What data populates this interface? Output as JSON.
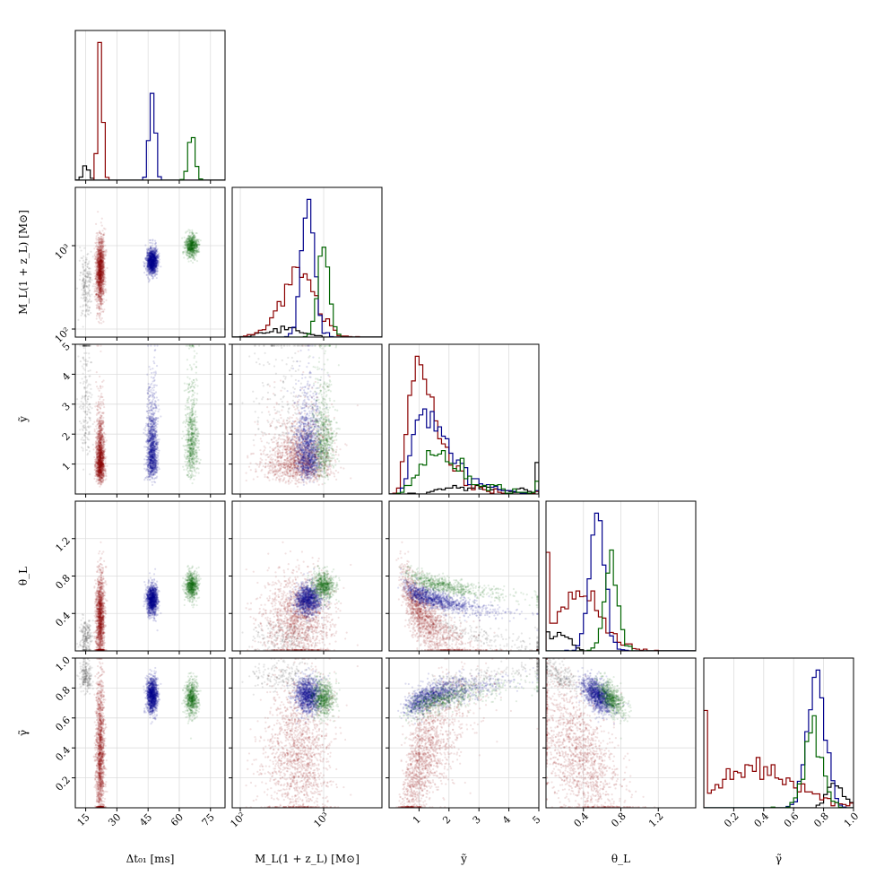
{
  "chart_data": {
    "type": "corner",
    "parameters": [
      {
        "key": "dt",
        "label": "Δt₀₁ [ms]",
        "range": [
          10,
          82
        ],
        "scale": "linear",
        "ticks": [
          15,
          30,
          45,
          60,
          75
        ],
        "tick_labels": [
          "15",
          "30",
          "45",
          "60",
          "75"
        ]
      },
      {
        "key": "ml",
        "label": "M_L(1 + z_L) [M⊙]",
        "range": [
          80,
          5000
        ],
        "scale": "log",
        "ticks": [
          100,
          1000
        ],
        "tick_labels": [
          "10²",
          "10³"
        ]
      },
      {
        "key": "y",
        "label": "ỹ",
        "range": [
          0,
          5
        ],
        "scale": "linear",
        "ticks": [
          1,
          2,
          3,
          4,
          5
        ],
        "tick_labels": [
          "1",
          "2",
          "3",
          "4",
          "5"
        ]
      },
      {
        "key": "theta",
        "label": "θ_L",
        "range": [
          0,
          1.6
        ],
        "scale": "linear",
        "ticks": [
          0.4,
          0.8,
          1.2
        ],
        "tick_labels": [
          "0.4",
          "0.8",
          "1.2"
        ]
      },
      {
        "key": "gamma",
        "label": "γ̃",
        "range": [
          0,
          1
        ],
        "scale": "linear",
        "ticks": [
          0.2,
          0.4,
          0.6,
          0.8,
          1.0
        ],
        "tick_labels": [
          "0.2",
          "0.4",
          "0.6",
          "0.8",
          "1.0"
        ]
      }
    ],
    "series": [
      {
        "name": "black",
        "color": "#000000",
        "point_alpha": 0.1,
        "n": 200,
        "dt": {
          "mean": 15,
          "sd": 1.5
        },
        "ml": {
          "mean": 330,
          "sd": 0.45
        },
        "y": {
          "mean": 3.2,
          "sd": 0.9
        },
        "theta": {
          "mean": 0.15,
          "sd": 0.1
        },
        "gamma": {
          "mean": 0.88,
          "sd": 0.05
        }
      },
      {
        "name": "red",
        "color": "#8b0000",
        "point_alpha": 0.12,
        "n": 1500,
        "dt": {
          "mean": 22,
          "sd": 1.0
        },
        "ml": {
          "mean": 500,
          "sd": 0.45
        },
        "y": {
          "mean": 1.2,
          "sd": 0.7
        },
        "theta": {
          "mean": 0.35,
          "sd": 0.25
        },
        "gamma": {
          "mean": 0.35,
          "sd": 0.25
        }
      },
      {
        "name": "blue",
        "color": "#00008b",
        "point_alpha": 0.14,
        "n": 1200,
        "dt": {
          "mean": 47,
          "sd": 1.3
        },
        "ml": {
          "mean": 650,
          "sd": 0.18
        },
        "y": {
          "mean": 1.5,
          "sd": 0.5
        },
        "theta": {
          "mean": 0.55,
          "sd": 0.08
        },
        "gamma": {
          "mean": 0.75,
          "sd": 0.06
        }
      },
      {
        "name": "green",
        "color": "#006400",
        "point_alpha": 0.12,
        "n": 700,
        "dt": {
          "mean": 66,
          "sd": 1.5
        },
        "ml": {
          "mean": 1000,
          "sd": 0.15
        },
        "y": {
          "mean": 1.8,
          "sd": 0.6
        },
        "theta": {
          "mean": 0.7,
          "sd": 0.07
        },
        "gamma": {
          "mean": 0.73,
          "sd": 0.06
        }
      }
    ],
    "histograms": "1D marginal step histograms on the diagonal, colored per series"
  }
}
